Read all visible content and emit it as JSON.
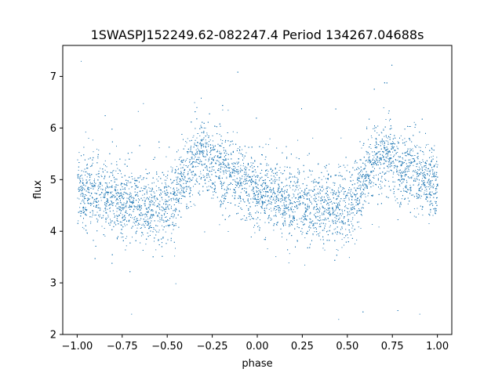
{
  "chart_data": {
    "type": "scatter",
    "title": "1SWASPJ152249.62-082247.4 Period 134267.04688s",
    "xlabel": "phase",
    "ylabel": "flux",
    "xlim": [
      -1.08,
      1.08
    ],
    "ylim": [
      2.0,
      7.6
    ],
    "xticks": [
      -1.0,
      -0.75,
      -0.5,
      -0.25,
      0.0,
      0.25,
      0.5,
      0.75,
      1.0
    ],
    "xtick_labels": [
      "−1.00",
      "−0.75",
      "−0.50",
      "−0.25",
      "0.00",
      "0.25",
      "0.50",
      "0.75",
      "1.00"
    ],
    "yticks": [
      2,
      3,
      4,
      5,
      6,
      7
    ],
    "ytick_labels": [
      "2",
      "3",
      "4",
      "5",
      "6",
      "7"
    ],
    "grid": false,
    "legend": "none",
    "point_color": "#1f77b4",
    "profile": {
      "description_phase": [
        -1.0,
        -0.9,
        -0.8,
        -0.7,
        -0.6,
        -0.5,
        -0.45,
        -0.4,
        -0.35,
        -0.3,
        -0.25,
        -0.2,
        -0.1,
        0.0,
        0.1,
        0.2,
        0.3,
        0.4,
        0.5,
        0.55,
        0.6,
        0.65,
        0.7,
        0.75,
        0.8,
        0.9,
        1.0
      ],
      "mean_flux": [
        4.85,
        4.72,
        4.62,
        4.55,
        4.5,
        4.5,
        4.7,
        5.1,
        5.4,
        5.5,
        5.35,
        5.2,
        5.0,
        4.8,
        4.65,
        4.55,
        4.5,
        4.45,
        4.5,
        4.75,
        5.1,
        5.4,
        5.5,
        5.4,
        5.25,
        5.05,
        4.85
      ],
      "spread_flux": 0.35
    },
    "series": [
      {
        "color": "#1f77b4",
        "sample_points": [
          {
            "x": -0.98,
            "y": 7.3
          },
          {
            "x": -0.35,
            "y": 6.5
          },
          {
            "x": 0.7,
            "y": 6.4
          },
          {
            "x": -0.7,
            "y": 2.4
          },
          {
            "x": 0.45,
            "y": 2.3
          },
          {
            "x": 0.9,
            "y": 2.4
          }
        ]
      }
    ]
  }
}
